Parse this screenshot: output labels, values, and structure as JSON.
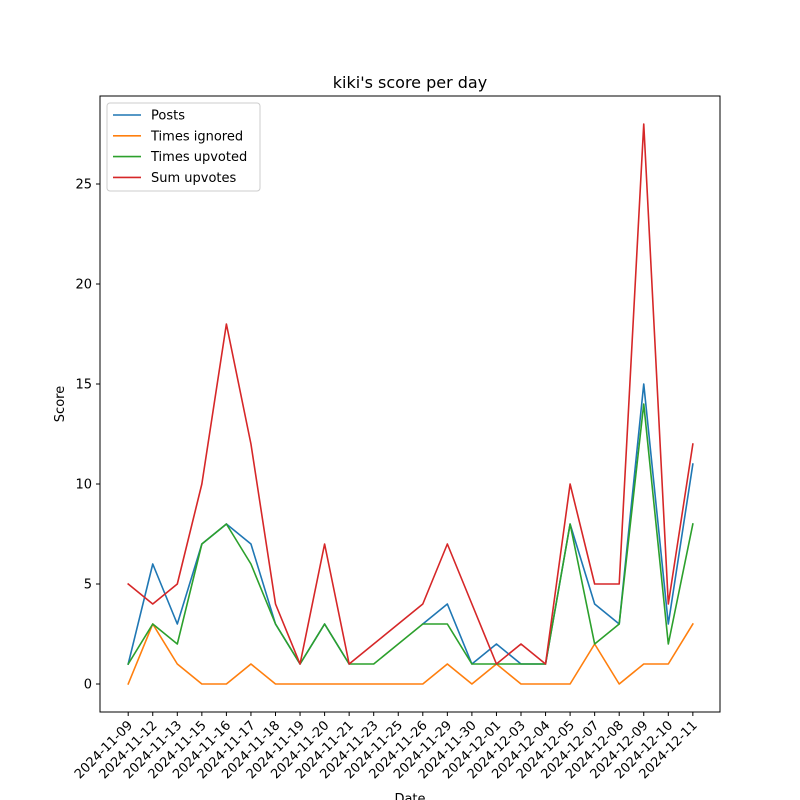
{
  "chart_data": {
    "type": "line",
    "title": "kiki's score per day",
    "xlabel": "Date",
    "ylabel": "Score",
    "x": [
      "2024-11-09",
      "2024-11-12",
      "2024-11-13",
      "2024-11-15",
      "2024-11-16",
      "2024-11-17",
      "2024-11-18",
      "2024-11-19",
      "2024-11-20",
      "2024-11-21",
      "2024-11-23",
      "2024-11-25",
      "2024-11-26",
      "2024-11-29",
      "2024-11-30",
      "2024-12-01",
      "2024-12-03",
      "2024-12-04",
      "2024-12-05",
      "2024-12-07",
      "2024-12-08",
      "2024-12-09",
      "2024-12-10",
      "2024-12-11"
    ],
    "ylim": [
      -1.4,
      29.4
    ],
    "yticks": [
      0,
      5,
      10,
      15,
      20,
      25
    ],
    "legend_position": "top-left",
    "grid": false,
    "series": [
      {
        "name": "Posts",
        "color": "#1f77b4",
        "values": [
          1,
          6,
          3,
          7,
          8,
          7,
          3,
          1,
          3,
          1,
          null,
          null,
          3,
          4,
          1,
          2,
          1,
          1,
          8,
          4,
          3,
          15,
          3,
          11
        ]
      },
      {
        "name": "Times ignored",
        "color": "#ff7f0e",
        "values": [
          0,
          3,
          1,
          0,
          0,
          1,
          0,
          0,
          0,
          0,
          0,
          0,
          0,
          1,
          0,
          1,
          0,
          0,
          0,
          2,
          0,
          1,
          1,
          3
        ]
      },
      {
        "name": "Times upvoted",
        "color": "#2ca02c",
        "values": [
          1,
          3,
          2,
          7,
          8,
          6,
          3,
          1,
          3,
          1,
          1,
          2,
          3,
          3,
          1,
          1,
          1,
          1,
          8,
          2,
          3,
          14,
          2,
          8
        ]
      },
      {
        "name": "Sum upvotes",
        "color": "#d62728",
        "values": [
          5,
          4,
          5,
          10,
          18,
          12,
          4,
          1,
          7,
          1,
          2,
          3,
          4,
          7,
          4,
          1,
          2,
          1,
          10,
          5,
          5,
          28,
          4,
          12
        ]
      }
    ]
  }
}
